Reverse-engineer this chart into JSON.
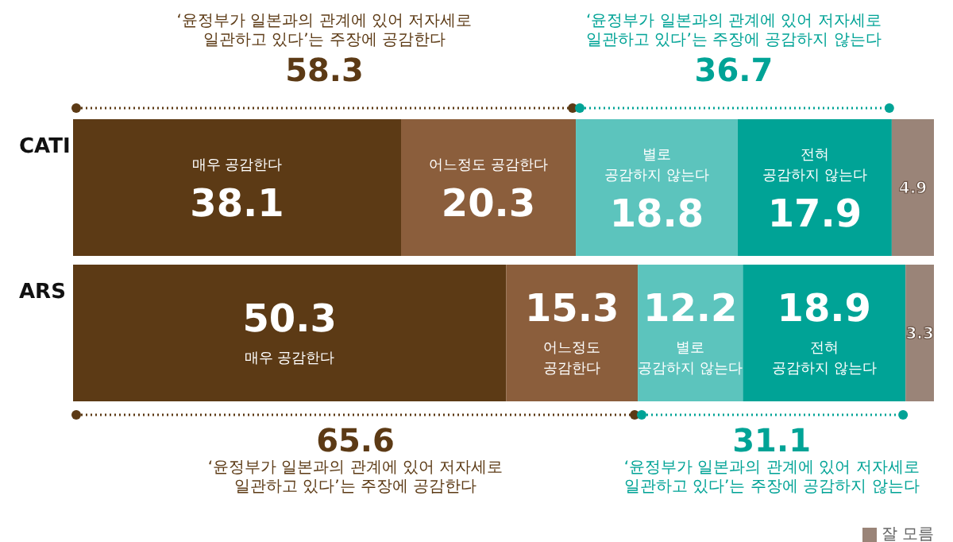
{
  "chart_data": {
    "type": "bar",
    "orientation": "horizontal",
    "stacked": true,
    "categories": [
      "CATI",
      "ARS"
    ],
    "series": [
      {
        "name": "매우 공감한다",
        "color": "#5c3a15",
        "values": [
          38.1,
          50.3
        ]
      },
      {
        "name": "어느정도 공감한다",
        "color": "#8b5e3c",
        "values": [
          20.3,
          15.3
        ]
      },
      {
        "name": "별로 공감하지 않는다",
        "color": "#5cc4bd",
        "values": [
          18.8,
          12.2
        ]
      },
      {
        "name": "전혀 공감하지 않는다",
        "color": "#00a396",
        "values": [
          17.9,
          18.9
        ]
      },
      {
        "name": "잘 모름",
        "color": "#9a8478",
        "values": [
          4.9,
          3.3
        ]
      }
    ],
    "xlim": [
      0,
      100
    ],
    "tick_labels": "y",
    "data_labels": true,
    "legend": "bottom right",
    "grid": false,
    "annotations": [
      "‘윤정부가 일본과의 관계에 있어 저자세로 일관하고 있다’는 주장에 공감한다",
      "58.3",
      "‘윤정부가 일본과의 관계에 있어 저자세로 일관하고 있다’는 주장에 공감하지 않는다",
      "36.7",
      "‘윤정부가 일본과의 관계에 있어 저자세로 일관하고 있다’는 주장에 공감한다",
      "65.6",
      "‘윤정부가 일본과의 관계에 있어 저자세로 일관하고 있다’는 주장에 공감하지 않는다",
      "31.1"
    ]
  }
}
